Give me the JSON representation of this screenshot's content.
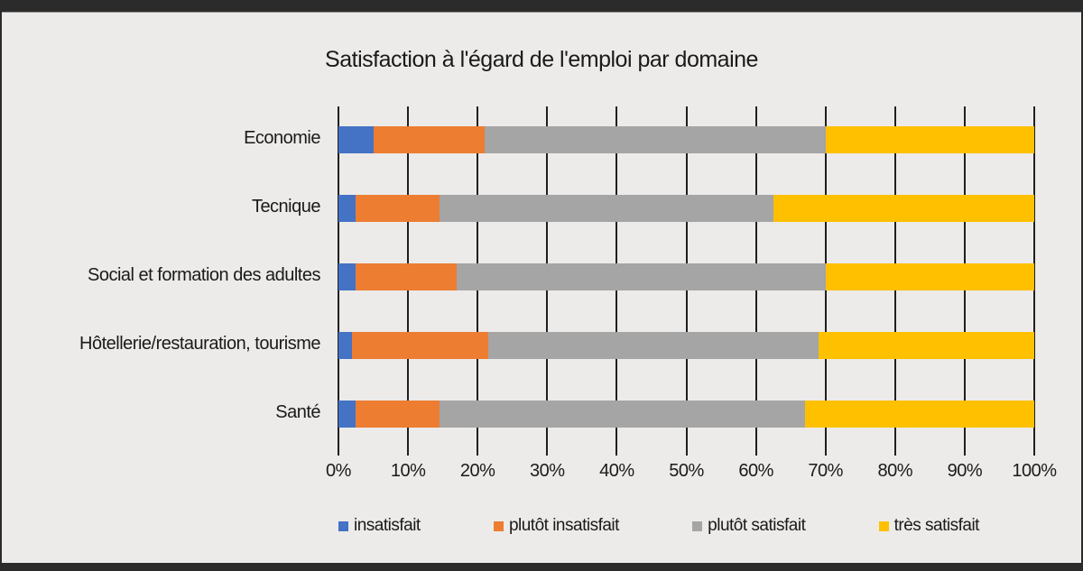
{
  "window": {
    "top_bar_color": "#2b2b2b",
    "bottom_bar_color": "#2b2b2b",
    "background_color": "#ecebe9",
    "gridline_color": "#1f1f1f"
  },
  "chart_data": {
    "type": "bar",
    "orientation": "horizontal",
    "stacked": true,
    "title": "Satisfaction à l'égard de l'emploi par domaine",
    "categories": [
      "Economie",
      "Tecnique",
      "Social et formation des adultes",
      "Hôtellerie/restauration, tourisme",
      "Santé"
    ],
    "series": [
      {
        "name": "insatisfait",
        "color": "#4472c4",
        "values": [
          5,
          2.5,
          2.5,
          2,
          2.5
        ]
      },
      {
        "name": "plutôt insatisfait",
        "color": "#ed7d31",
        "values": [
          16,
          12,
          14.5,
          19.5,
          12
        ]
      },
      {
        "name": "plutôt satisfait",
        "color": "#a5a5a5",
        "values": [
          49,
          48,
          53,
          47.5,
          52.5
        ]
      },
      {
        "name": "très satisfait",
        "color": "#ffc000",
        "values": [
          30,
          37.5,
          30,
          31,
          33
        ]
      }
    ],
    "x_axis": {
      "label": "",
      "min": 0,
      "max": 100,
      "tick_step": 10,
      "tick_labels": [
        "0%",
        "10%",
        "20%",
        "30%",
        "40%",
        "50%",
        "60%",
        "70%",
        "80%",
        "90%",
        "100%"
      ],
      "grid": true
    },
    "y_axis": {
      "label": ""
    },
    "legend": {
      "position": "bottom",
      "entries": [
        "insatisfait",
        "plutôt insatisfait",
        "plutôt satisfait",
        "très satisfait"
      ]
    }
  }
}
